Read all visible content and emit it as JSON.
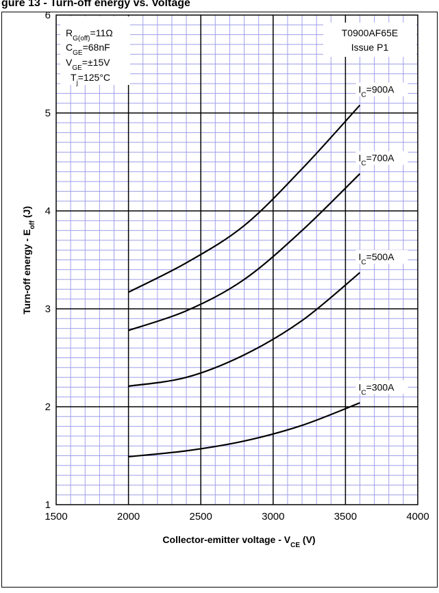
{
  "page": {
    "header_partial": "gure 13 - Turn-off energy vs. Voltage"
  },
  "chart_data": {
    "type": "line",
    "title": "",
    "xlabel": "Collector-emitter voltage - V",
    "xlabel_sub": "CE",
    "xlabel_unit": " (V)",
    "ylabel": "Turn-off energy - E",
    "ylabel_sub": "off",
    "ylabel_unit": " (J)",
    "xlim": [
      1500,
      4000
    ],
    "ylim": [
      1,
      6
    ],
    "x_ticks": [
      "1500",
      "2000",
      "2500",
      "3000",
      "3500",
      "4000"
    ],
    "y_ticks": [
      "1",
      "2",
      "3",
      "4",
      "5",
      "6"
    ],
    "grid": true,
    "series": [
      {
        "name": "I",
        "name_sub": "C",
        "name_value": "=900A",
        "x": [
          2000,
          2400,
          2800,
          3200,
          3600
        ],
        "y": [
          3.17,
          3.47,
          3.85,
          4.43,
          5.08
        ]
      },
      {
        "name": "I",
        "name_sub": "C",
        "name_value": "=700A",
        "x": [
          2000,
          2400,
          2800,
          3200,
          3600
        ],
        "y": [
          2.78,
          2.98,
          3.3,
          3.8,
          4.38
        ]
      },
      {
        "name": "I",
        "name_sub": "C",
        "name_value": "=500A",
        "x": [
          2000,
          2400,
          2800,
          3200,
          3600
        ],
        "y": [
          2.21,
          2.3,
          2.53,
          2.88,
          3.37
        ]
      },
      {
        "name": "I",
        "name_sub": "C",
        "name_value": "=300A",
        "x": [
          2000,
          2400,
          2800,
          3200,
          3600
        ],
        "y": [
          1.49,
          1.55,
          1.65,
          1.81,
          2.04
        ]
      }
    ],
    "conditions": [
      {
        "main": "R",
        "sub": "G(off)",
        "value": "=11Ω"
      },
      {
        "main": "C",
        "sub": "GE",
        "value": "=68nF"
      },
      {
        "main": "V",
        "sub": "GE",
        "value": "=±15V"
      },
      {
        "main": "T",
        "sub": "j",
        "value": "=125°C"
      }
    ],
    "device": {
      "part_number": "T0900AF65E",
      "issue": "Issue P1"
    }
  }
}
